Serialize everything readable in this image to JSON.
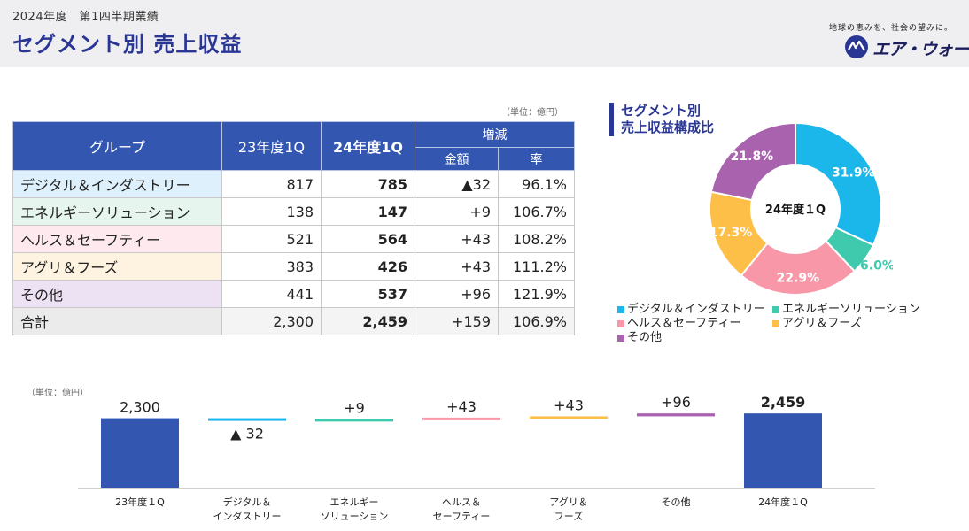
{
  "header": {
    "subtitle": "2024年度　第1四半期業績",
    "title": "セグメント別 売上収益",
    "tagline": "地球の恵みを、社会の望みに。",
    "logo_text": "エア・ウォーター"
  },
  "table": {
    "unit": "（単位：億円）",
    "headers": {
      "group": "グループ",
      "prev": "23年度1Q",
      "curr": "24年度1Q",
      "change": "増減",
      "amount": "金額",
      "rate": "率"
    },
    "rows": [
      {
        "name": "デジタル＆インダストリー",
        "prev": "817",
        "curr": "785",
        "amount": "▲32",
        "rate": "96.1%",
        "color": "#ddf0fb"
      },
      {
        "name": "エネルギーソリューション",
        "prev": "138",
        "curr": "147",
        "amount": "+9",
        "rate": "106.7%",
        "color": "#e6f6ef"
      },
      {
        "name": "ヘルス＆セーフティー",
        "prev": "521",
        "curr": "564",
        "amount": "+43",
        "rate": "108.2%",
        "color": "#fde9ee"
      },
      {
        "name": "アグリ＆フーズ",
        "prev": "383",
        "curr": "426",
        "amount": "+43",
        "rate": "111.2%",
        "color": "#fdf3e0"
      },
      {
        "name": "その他",
        "prev": "441",
        "curr": "537",
        "amount": "+96",
        "rate": "121.9%",
        "color": "#ede2f3"
      },
      {
        "name": "合計",
        "prev": "2,300",
        "curr": "2,459",
        "amount": "+159",
        "rate": "106.9%",
        "color": "#ebebeb"
      }
    ]
  },
  "pie": {
    "title_line1": "セグメント別",
    "title_line2": "売上収益構成比",
    "center_label": "24年度１Q"
  },
  "waterfall": {
    "unit": "（単位：億円）"
  },
  "chart_data": [
    {
      "type": "pie",
      "title": "セグメント別 売上収益構成比",
      "center": "24年度１Q",
      "slices": [
        {
          "name": "デジタル＆インダストリー",
          "value": 31.9,
          "label": "31.9%",
          "color": "#1bb6ea"
        },
        {
          "name": "エネルギーソリューション",
          "value": 6.0,
          "label": "6.0%",
          "color": "#3fc9ad"
        },
        {
          "name": "ヘルス＆セーフティー",
          "value": 22.9,
          "label": "22.9%",
          "color": "#f797a8"
        },
        {
          "name": "アグリ＆フーズ",
          "value": 17.3,
          "label": "17.3%",
          "color": "#fdbf48"
        },
        {
          "name": "その他",
          "value": 21.8,
          "label": "21.8%",
          "color": "#a862ae"
        }
      ],
      "legend": "bottom"
    },
    {
      "type": "bar",
      "subtype": "waterfall",
      "ylim": [
        0,
        2600
      ],
      "items": [
        {
          "category": "23年度１Q",
          "label": "2,300",
          "kind": "total",
          "value": 2300,
          "color": "#3357b0"
        },
        {
          "category": "デジタル＆\nインダストリー",
          "label": "▲ 32",
          "kind": "delta",
          "value": -32,
          "color": "#1bb6ea"
        },
        {
          "category": "エネルギー\nソリューション",
          "label": "+9",
          "kind": "delta",
          "value": 9,
          "color": "#3fc9ad"
        },
        {
          "category": "ヘルス＆\nセーフティー",
          "label": "+43",
          "kind": "delta",
          "value": 43,
          "color": "#f797a8"
        },
        {
          "category": "アグリ＆\nフーズ",
          "label": "+43",
          "kind": "delta",
          "value": 43,
          "color": "#fdbf48"
        },
        {
          "category": "その他",
          "label": "+96",
          "kind": "delta",
          "value": 96,
          "color": "#a862ae"
        },
        {
          "category": "24年度１Q",
          "label": "2,459",
          "kind": "total",
          "value": 2459,
          "color": "#3357b0"
        }
      ]
    }
  ]
}
